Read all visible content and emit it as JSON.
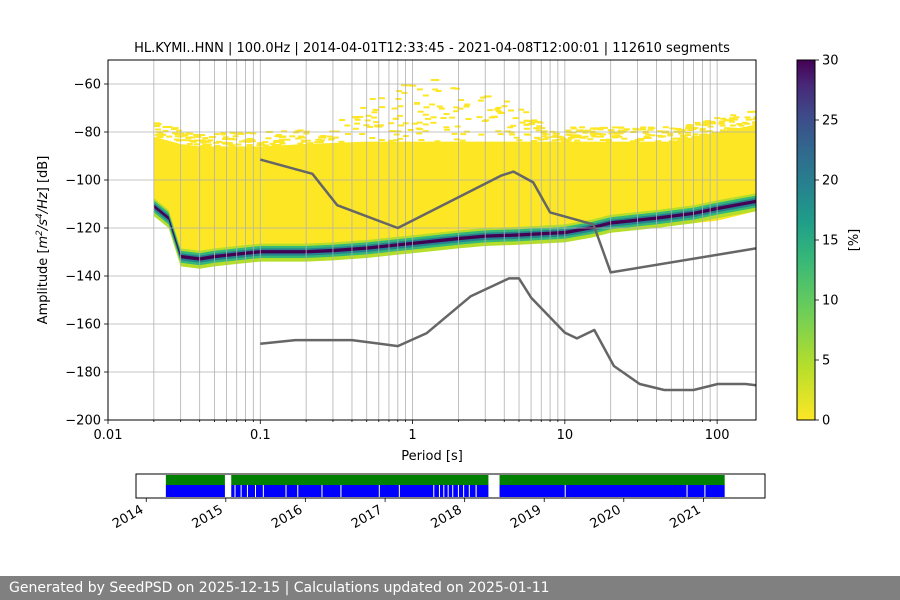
{
  "chart_data": [
    {
      "type": "heatmap",
      "title": "HL.KYMI..HNN | 100.0Hz | 2014-04-01T12:33:45 - 2021-04-08T12:00:01 | 112610 segments",
      "xlabel": "Period [s]",
      "ylabel_parts": [
        "Amplitude [",
        "m",
        "2",
        "/s",
        "4",
        "/Hz",
        "] [dB]"
      ],
      "x_scale": "log",
      "xlim": [
        0.01,
        180
      ],
      "ylim": [
        -200,
        -50
      ],
      "x_ticks": [
        0.01,
        0.1,
        1,
        10,
        100
      ],
      "x_tick_labels": [
        "0.01",
        "0.1",
        "1",
        "10",
        "100"
      ],
      "y_ticks": [
        -200,
        -180,
        -160,
        -140,
        -120,
        -100,
        -80,
        -60
      ],
      "y_tick_labels": [
        "−200",
        "−180",
        "−160",
        "−140",
        "−120",
        "−100",
        "−80",
        "−60"
      ],
      "grid": true,
      "colorbar": {
        "label": "[%]",
        "range": [
          0,
          30
        ],
        "ticks": [
          0,
          5,
          10,
          15,
          20,
          25,
          30
        ],
        "tick_labels": [
          "0",
          "5",
          "10",
          "15",
          "20",
          "25",
          "30"
        ],
        "colormap": "viridis_r"
      },
      "psd_mode": {
        "period": [
          0.02,
          0.025,
          0.03,
          0.04,
          0.05,
          0.07,
          0.1,
          0.15,
          0.2,
          0.3,
          0.5,
          0.7,
          1,
          2,
          3,
          5,
          7,
          10,
          15,
          20,
          40,
          70,
          100,
          180
        ],
        "amplitude": [
          -111,
          -116,
          -132,
          -133,
          -132,
          -131,
          -130,
          -130,
          -130,
          -129.5,
          -128.5,
          -127.5,
          -126.5,
          -124.5,
          -123.5,
          -123,
          -122.5,
          -122,
          -120,
          -118,
          -116,
          -114,
          -112,
          -109
        ]
      },
      "psd_upper_edge": {
        "period": [
          0.02,
          0.03,
          0.04,
          0.05,
          0.07,
          0.1,
          0.2,
          0.5,
          1,
          2,
          5,
          10,
          20,
          50,
          100,
          180
        ],
        "amplitude": [
          -82,
          -85,
          -86,
          -86,
          -86,
          -86,
          -85,
          -84,
          -84,
          -84,
          -84,
          -84,
          -84,
          -84,
          -80,
          -77
        ]
      },
      "psd_lower_edge": {
        "period": [
          0.02,
          0.025,
          0.03,
          0.04,
          0.05,
          0.07,
          0.1,
          0.2,
          0.5,
          1,
          2,
          5,
          10,
          20,
          50,
          100,
          180
        ],
        "amplitude": [
          -112,
          -118,
          -134,
          -135,
          -135,
          -134,
          -133,
          -132,
          -131,
          -130,
          -128,
          -126,
          -125,
          -122,
          -119,
          -117,
          -113
        ]
      },
      "series": [
        {
          "name": "",
          "color": "#666666",
          "period": [
            0.1,
            0.22,
            0.32,
            0.8,
            3.8,
            4.6,
            6.2,
            8,
            15.4,
            20,
            180
          ],
          "amplitude": [
            -91.5,
            -97.4,
            -110.5,
            -120,
            -98.2,
            -96.5,
            -101,
            -113.5,
            -118.5,
            -138.5,
            -128.5
          ]
        },
        {
          "name": "",
          "color": "#666666",
          "period": [
            0.1,
            0.17,
            0.4,
            0.8,
            1.24,
            2.4,
            4.3,
            5,
            6,
            10,
            12,
            15.6,
            21,
            31,
            45,
            70,
            101,
            154,
            180
          ],
          "amplitude": [
            -168.2,
            -166.7,
            -166.7,
            -169.2,
            -163.8,
            -148.5,
            -141,
            -141,
            -149,
            -163.6,
            -166,
            -162.5,
            -177.5,
            -185,
            -187.5,
            -187.5,
            -185,
            -185,
            -185.5
          ]
        }
      ]
    },
    {
      "type": "timeline",
      "x_range": [
        "2013-11-15",
        "2021-10-10"
      ],
      "tick_labels": [
        "2014",
        "2015",
        "2016",
        "2017",
        "2018",
        "2019",
        "2020",
        "2021"
      ],
      "data_span": [
        "2014-04-01",
        "2021-04-08"
      ],
      "top_bar_color": "#008000",
      "bottom_bar_color": "#0000ff",
      "top_gaps": [
        [
          "2014-12-28",
          "2015-01-26"
        ],
        [
          "2018-04-20",
          "2018-06-10"
        ]
      ],
      "bottom_gaps": [
        [
          "2014-12-28",
          "2015-01-26"
        ],
        [
          "2015-02-10",
          "2015-02-14"
        ],
        [
          "2015-03-10",
          "2015-03-14"
        ],
        [
          "2015-04-08",
          "2015-04-11"
        ],
        [
          "2015-05-15",
          "2015-05-19"
        ],
        [
          "2015-06-20",
          "2015-06-24"
        ],
        [
          "2015-10-02",
          "2015-10-06"
        ],
        [
          "2015-11-25",
          "2015-11-29"
        ],
        [
          "2016-03-15",
          "2016-03-19"
        ],
        [
          "2016-06-10",
          "2016-06-14"
        ],
        [
          "2016-12-03",
          "2016-12-07"
        ],
        [
          "2017-03-05",
          "2017-03-09"
        ],
        [
          "2017-08-10",
          "2017-08-14"
        ],
        [
          "2017-09-05",
          "2017-09-09"
        ],
        [
          "2017-09-25",
          "2017-09-29"
        ],
        [
          "2017-10-15",
          "2017-10-18"
        ],
        [
          "2017-11-05",
          "2017-11-09"
        ],
        [
          "2017-12-01",
          "2017-12-05"
        ],
        [
          "2017-12-25",
          "2017-12-29"
        ],
        [
          "2018-01-20",
          "2018-01-24"
        ],
        [
          "2018-02-20",
          "2018-02-25"
        ],
        [
          "2018-04-20",
          "2018-06-10"
        ],
        [
          "2019-04-05",
          "2019-04-08"
        ],
        [
          "2020-10-15",
          "2020-10-18"
        ],
        [
          "2021-01-05",
          "2021-01-08"
        ]
      ]
    }
  ],
  "footer": {
    "text": "Generated by SeedPSD on 2025-12-15 | Calculations updated on 2025-01-11"
  }
}
